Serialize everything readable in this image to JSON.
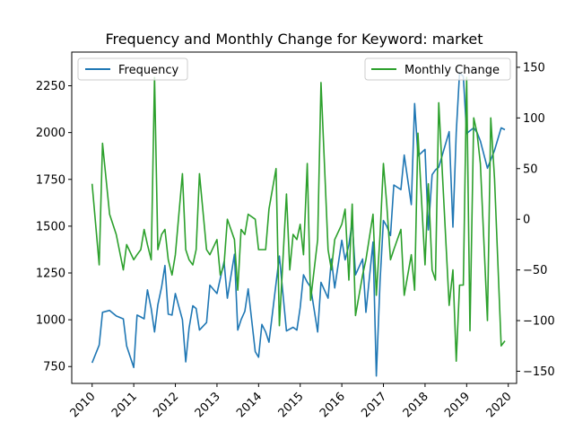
{
  "chart_data": {
    "type": "line",
    "title": "Frequency and Monthly Change for Keyword: market",
    "x_ticks": [
      "2010",
      "2011",
      "2012",
      "2013",
      "2014",
      "2015",
      "2016",
      "2017",
      "2018",
      "2019",
      "2020"
    ],
    "y_left_ticks": [
      750,
      1000,
      1250,
      1500,
      1750,
      2000,
      2250
    ],
    "y_right_ticks": [
      -150,
      -100,
      -50,
      0,
      50,
      100,
      150
    ],
    "y_left_lim": [
      660,
      2430
    ],
    "y_right_lim": [
      -162,
      165
    ],
    "x_lim": [
      2009.51,
      2020.2
    ],
    "grid": false,
    "series": [
      {
        "name": "Frequency",
        "axis": "left",
        "color": "#1f77b4",
        "x": [
          2010.0,
          2010.17,
          2010.25,
          2010.42,
          2010.58,
          2010.75,
          2010.83,
          2011.0,
          2011.08,
          2011.17,
          2011.25,
          2011.33,
          2011.42,
          2011.5,
          2011.58,
          2011.67,
          2011.75,
          2011.83,
          2011.92,
          2012.0,
          2012.17,
          2012.25,
          2012.33,
          2012.42,
          2012.5,
          2012.58,
          2012.75,
          2012.83,
          2013.0,
          2013.08,
          2013.17,
          2013.25,
          2013.42,
          2013.5,
          2013.58,
          2013.67,
          2013.75,
          2013.92,
          2014.0,
          2014.08,
          2014.17,
          2014.25,
          2014.42,
          2014.5,
          2014.67,
          2014.75,
          2014.83,
          2014.92,
          2015.0,
          2015.08,
          2015.17,
          2015.25,
          2015.42,
          2015.5,
          2015.67,
          2015.75,
          2015.83,
          2016.0,
          2016.08,
          2016.17,
          2016.25,
          2016.33,
          2016.5,
          2016.58,
          2016.75,
          2016.83,
          2016.92,
          2017.0,
          2017.08,
          2017.17,
          2017.25,
          2017.42,
          2017.5,
          2017.67,
          2017.75,
          2017.83,
          2018.0,
          2018.08,
          2018.17,
          2018.25,
          2018.33,
          2018.58,
          2018.67,
          2018.75,
          2018.83,
          2018.92,
          2019.0,
          2019.08,
          2019.17,
          2019.25,
          2019.33,
          2019.5,
          2019.58,
          2019.67,
          2019.83,
          2019.92
        ],
        "values": [
          770,
          865,
          1040,
          1050,
          1020,
          1005,
          860,
          745,
          1025,
          1015,
          1005,
          1160,
          1060,
          935,
          1080,
          1175,
          1290,
          1030,
          1025,
          1140,
          1000,
          775,
          955,
          1075,
          1060,
          945,
          985,
          1185,
          1140,
          1220,
          1310,
          1115,
          1350,
          945,
          1000,
          1045,
          1165,
          830,
          800,
          975,
          935,
          880,
          1195,
          1340,
          940,
          950,
          960,
          945,
          1065,
          1240,
          1200,
          1175,
          935,
          1200,
          1115,
          1325,
          1170,
          1425,
          1320,
          1400,
          1525,
          1240,
          1325,
          1040,
          1415,
          700,
          1210,
          1530,
          1500,
          1450,
          1720,
          1695,
          1880,
          1615,
          2155,
          1875,
          1910,
          1480,
          1775,
          1800,
          1815,
          2005,
          1495,
          2000,
          2320,
          2300,
          1995,
          2010,
          2025,
          2000,
          1955,
          1810,
          1855,
          1905,
          2025,
          2015
        ]
      },
      {
        "name": "Monthly Change",
        "axis": "right",
        "color": "#2ca02c",
        "x": [
          2010.0,
          2010.17,
          2010.25,
          2010.42,
          2010.58,
          2010.75,
          2010.83,
          2011.0,
          2011.08,
          2011.17,
          2011.25,
          2011.33,
          2011.42,
          2011.5,
          2011.58,
          2011.67,
          2011.75,
          2011.83,
          2011.92,
          2012.0,
          2012.17,
          2012.25,
          2012.33,
          2012.42,
          2012.5,
          2012.58,
          2012.75,
          2012.83,
          2013.0,
          2013.08,
          2013.17,
          2013.25,
          2013.42,
          2013.5,
          2013.58,
          2013.67,
          2013.75,
          2013.92,
          2014.0,
          2014.08,
          2014.17,
          2014.25,
          2014.42,
          2014.5,
          2014.67,
          2014.75,
          2014.83,
          2014.92,
          2015.0,
          2015.08,
          2015.17,
          2015.25,
          2015.42,
          2015.5,
          2015.67,
          2015.75,
          2015.83,
          2016.0,
          2016.08,
          2016.17,
          2016.25,
          2016.33,
          2016.5,
          2016.58,
          2016.75,
          2016.83,
          2016.92,
          2017.0,
          2017.08,
          2017.17,
          2017.25,
          2017.42,
          2017.5,
          2017.67,
          2017.75,
          2017.83,
          2018.0,
          2018.08,
          2018.17,
          2018.25,
          2018.33,
          2018.58,
          2018.67,
          2018.75,
          2018.83,
          2018.92,
          2019.0,
          2019.08,
          2019.17,
          2019.25,
          2019.33,
          2019.5,
          2019.58,
          2019.67,
          2019.83,
          2019.92
        ],
        "values": [
          35,
          -45,
          75,
          5,
          -15,
          -50,
          -25,
          -40,
          -35,
          -30,
          -10,
          -25,
          -40,
          140,
          -30,
          -15,
          -10,
          -40,
          -55,
          -35,
          45,
          -30,
          -40,
          -45,
          -30,
          45,
          -30,
          -35,
          -20,
          -55,
          -45,
          0,
          -20,
          -70,
          -10,
          -15,
          5,
          0,
          -30,
          -30,
          -30,
          10,
          50,
          -105,
          25,
          -50,
          -15,
          -20,
          -5,
          -35,
          55,
          -80,
          -20,
          135,
          -30,
          -50,
          -20,
          -5,
          10,
          -60,
          15,
          -95,
          -55,
          -40,
          5,
          -75,
          -15,
          55,
          15,
          -40,
          -30,
          -10,
          -75,
          -35,
          -70,
          85,
          -45,
          35,
          -50,
          -60,
          115,
          -85,
          -50,
          -140,
          -65,
          -65,
          140,
          -110,
          100,
          85,
          55,
          -100,
          100,
          40,
          -125,
          -120
        ]
      }
    ],
    "legend": [
      {
        "label": "Frequency",
        "placement": "upper-left",
        "color": "#1f77b4"
      },
      {
        "label": "Monthly Change",
        "placement": "upper-right",
        "color": "#2ca02c"
      }
    ]
  }
}
